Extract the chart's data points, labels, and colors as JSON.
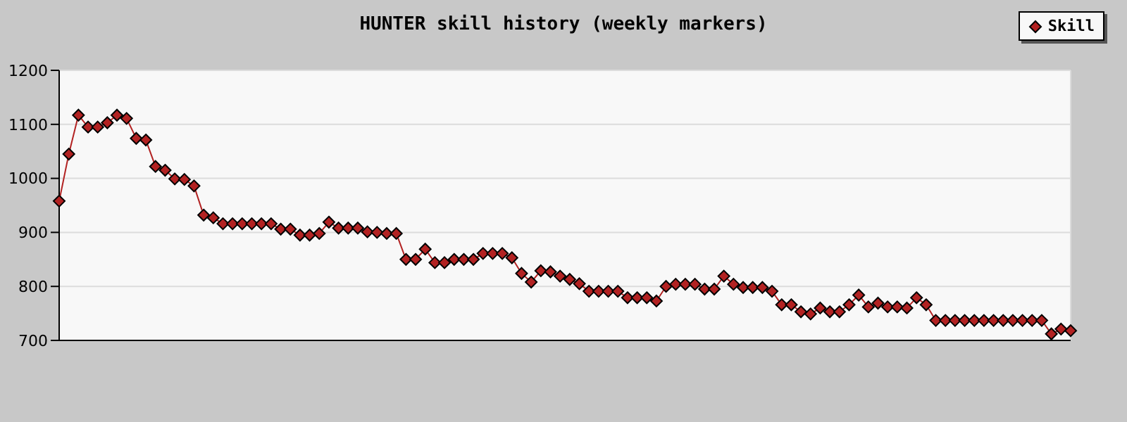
{
  "chart_data": {
    "type": "line",
    "title": "HUNTER skill history (weekly markers)",
    "categories": [
      null,
      null,
      null,
      null,
      null,
      null,
      null,
      null,
      null,
      null,
      null,
      null,
      null,
      null,
      null,
      null,
      null,
      null,
      null,
      null,
      null,
      null,
      null,
      null,
      null,
      null,
      null,
      null,
      null,
      null,
      null,
      null,
      null,
      null,
      null,
      null,
      null,
      null,
      null,
      null,
      null,
      null,
      null,
      null,
      null,
      null,
      null,
      null,
      null,
      null,
      null,
      null,
      null,
      null,
      null,
      null,
      null,
      null,
      null,
      null,
      null,
      null,
      null,
      null,
      null,
      null,
      null,
      null,
      null,
      null,
      null,
      null,
      null,
      null,
      null,
      null,
      null,
      null,
      null,
      null,
      null,
      null,
      null,
      null,
      null,
      null,
      null,
      null,
      null,
      null,
      null,
      null,
      null,
      null,
      null,
      null,
      null,
      null,
      null,
      null,
      null,
      null,
      null,
      null,
      null,
      null
    ],
    "series": [
      {
        "name": "Skill",
        "color": "#b22222",
        "values": [
          958,
          1045,
          1117,
          1095,
          1095,
          1103,
          1117,
          1111,
          1074,
          1071,
          1022,
          1015,
          999,
          998,
          986,
          932,
          927,
          916,
          916,
          916,
          916,
          916,
          916,
          906,
          906,
          895,
          895,
          898,
          919,
          908,
          908,
          908,
          901,
          900,
          898,
          898,
          850,
          850,
          869,
          844,
          844,
          850,
          850,
          850,
          861,
          861,
          861,
          853,
          824,
          808,
          829,
          827,
          819,
          813,
          805,
          791,
          791,
          791,
          791,
          779,
          779,
          779,
          773,
          800,
          804,
          804,
          804,
          795,
          795,
          819,
          804,
          798,
          798,
          798,
          791,
          766,
          766,
          753,
          749,
          760,
          753,
          753,
          766,
          784,
          762,
          769,
          762,
          762,
          760,
          779,
          766,
          737,
          737,
          737,
          737,
          737,
          737,
          737,
          737,
          737,
          737,
          737,
          737,
          712,
          721,
          718
        ]
      }
    ],
    "ylim": [
      700,
      1200
    ],
    "yticks": [
      700,
      800,
      900,
      1000,
      1100,
      1200
    ],
    "grid": true,
    "legend": "top right",
    "marker": "diamond",
    "line_style": "solid",
    "tick_labels": "y"
  }
}
